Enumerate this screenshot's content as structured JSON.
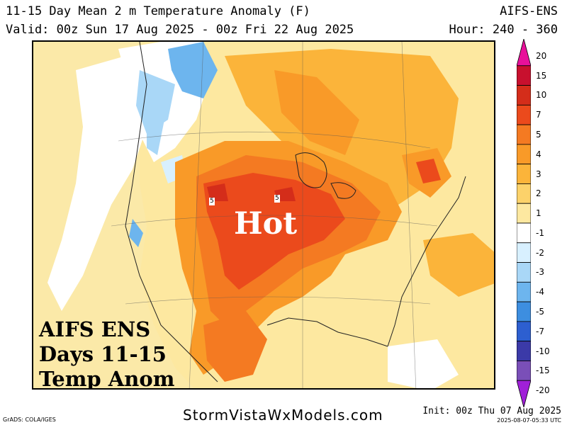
{
  "header": {
    "title": "11-15 Day Mean 2 m Temperature Anomaly (F)",
    "model": "AIFS-ENS",
    "valid": "Valid: 00z Sun 17 Aug 2025 - 00z Fri 22 Aug 2025",
    "hours": "Hour: 240 - 360"
  },
  "map": {
    "overlay_lines": [
      "AIFS ENS",
      "Days 11-15",
      "Temp Anom"
    ],
    "hot_label": "Hot",
    "contour_labels": [
      "5",
      "5"
    ]
  },
  "colorbar": {
    "unit": "F",
    "levels": [
      {
        "label": "20",
        "color": "#e8109a"
      },
      {
        "label": "15",
        "color": "#c8102e"
      },
      {
        "label": "10",
        "color": "#d42d1a"
      },
      {
        "label": "7",
        "color": "#eb4a1c"
      },
      {
        "label": "5",
        "color": "#f47a22"
      },
      {
        "label": "4",
        "color": "#f99a28"
      },
      {
        "label": "3",
        "color": "#fbb43a"
      },
      {
        "label": "2",
        "color": "#fcd26a"
      },
      {
        "label": "1",
        "color": "#fde8a0"
      },
      {
        "label": "-1",
        "color": "#ffffff"
      },
      {
        "label": "-2",
        "color": "#d8f0ff"
      },
      {
        "label": "-3",
        "color": "#a9d7f7"
      },
      {
        "label": "-4",
        "color": "#6db5ee"
      },
      {
        "label": "-5",
        "color": "#3d8ee0"
      },
      {
        "label": "-7",
        "color": "#2d5fd0"
      },
      {
        "label": "-10",
        "color": "#3b3aa8"
      },
      {
        "label": "-15",
        "color": "#7a4fb8"
      },
      {
        "label": "-20",
        "color": "#a020d8"
      }
    ]
  },
  "footer": {
    "left": "GrADS: COLA/IGES",
    "center": "StormVistaWxModels.com",
    "init": "Init: 00z Thu 07 Aug 2025",
    "stamp": "2025-08-07-05:33 UTC"
  }
}
